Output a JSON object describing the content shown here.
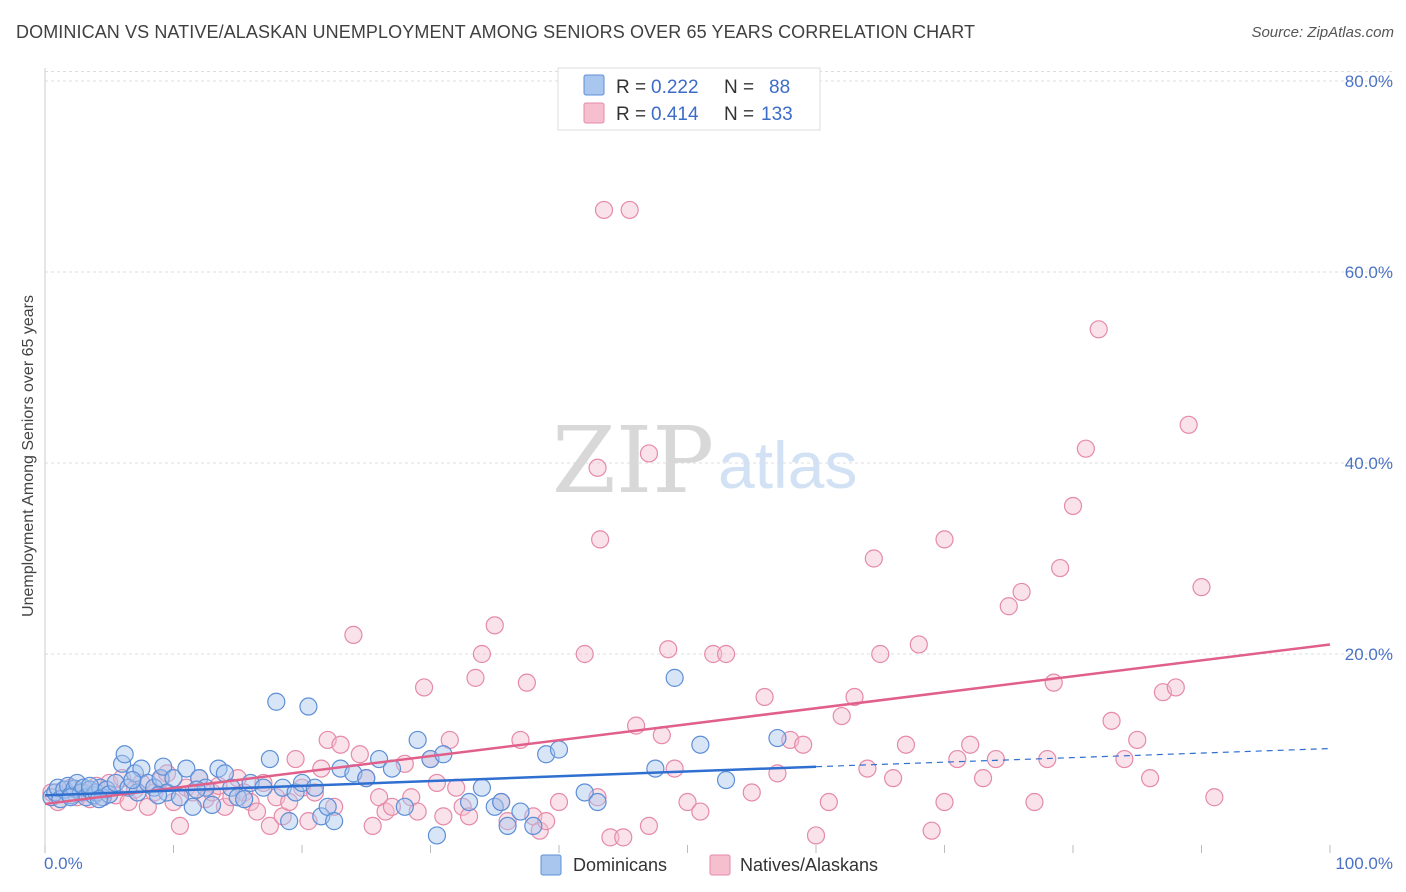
{
  "title": "DOMINICAN VS NATIVE/ALASKAN UNEMPLOYMENT AMONG SENIORS OVER 65 YEARS CORRELATION CHART",
  "source": "Source: ZipAtlas.com",
  "watermark": {
    "zip": "ZIP",
    "atlas": "atlas"
  },
  "colors": {
    "blue_fill": "#a9c6ee",
    "blue_stroke": "#5d8fd6",
    "blue_line": "#2f6fd0",
    "pink_fill": "#f5bfd0",
    "pink_stroke": "#e58aa8",
    "pink_line": "#e0608a",
    "grid": "#dddddd",
    "axis_label": "#4a72c4"
  },
  "stats": {
    "r_label": "R =",
    "n_label": "N =",
    "blue": {
      "r": "0.222",
      "n": "88"
    },
    "pink": {
      "r": "0.414",
      "n": "133"
    }
  },
  "chart_data": {
    "type": "scatter",
    "title": "DOMINICAN VS NATIVE/ALASKAN UNEMPLOYMENT AMONG SENIORS OVER 65 YEARS CORRELATION CHART",
    "xlabel": "",
    "ylabel": "Unemployment Among Seniors over 65 years",
    "xlim": [
      0,
      100
    ],
    "ylim": [
      0,
      85
    ],
    "x_tick_labels": [
      "0.0%",
      "100.0%"
    ],
    "y_ticks": [
      20,
      40,
      60,
      80
    ],
    "y_tick_labels": [
      "20.0%",
      "40.0%",
      "60.0%",
      "80.0%"
    ],
    "legend": [
      "Dominicans",
      "Natives/Alaskans"
    ],
    "series": [
      {
        "name": "Dominicans",
        "trend": {
          "x0": 0,
          "y0": 5.2,
          "x1": 60,
          "y1": 8.2,
          "dashed_to_x": 100,
          "dashed_to_y": 10.1
        },
        "points": [
          [
            0.5,
            5.0
          ],
          [
            0.8,
            5.5
          ],
          [
            1.0,
            6.0
          ],
          [
            1.2,
            4.8
          ],
          [
            1.5,
            5.8
          ],
          [
            1.8,
            6.2
          ],
          [
            2.0,
            5.2
          ],
          [
            2.3,
            5.9
          ],
          [
            2.5,
            6.5
          ],
          [
            2.8,
            5.5
          ],
          [
            3.0,
            6.0
          ],
          [
            3.2,
            5.0
          ],
          [
            3.5,
            5.8
          ],
          [
            3.8,
            5.2
          ],
          [
            4.0,
            5.5
          ],
          [
            4.3,
            6.0
          ],
          [
            4.5,
            5.0
          ],
          [
            4.8,
            5.8
          ],
          [
            5.0,
            5.3
          ],
          [
            5.5,
            6.5
          ],
          [
            6.0,
            8.5
          ],
          [
            6.2,
            9.5
          ],
          [
            6.5,
            6.0
          ],
          [
            7.0,
            7.5
          ],
          [
            7.2,
            5.5
          ],
          [
            7.5,
            8.0
          ],
          [
            8.0,
            6.5
          ],
          [
            8.5,
            6.0
          ],
          [
            9.0,
            7.0
          ],
          [
            9.2,
            8.2
          ],
          [
            9.5,
            5.5
          ],
          [
            10.0,
            7.0
          ],
          [
            10.5,
            5.0
          ],
          [
            11.0,
            8.0
          ],
          [
            11.5,
            4.0
          ],
          [
            12.0,
            7.0
          ],
          [
            12.5,
            6.0
          ],
          [
            13.0,
            4.2
          ],
          [
            13.5,
            8.0
          ],
          [
            14.0,
            7.5
          ],
          [
            14.5,
            6.0
          ],
          [
            15.0,
            5.0
          ],
          [
            15.5,
            4.8
          ],
          [
            16.0,
            6.5
          ],
          [
            17.0,
            6.0
          ],
          [
            17.5,
            9.0
          ],
          [
            18.0,
            15.0
          ],
          [
            18.5,
            6.0
          ],
          [
            19.0,
            2.5
          ],
          [
            19.5,
            5.5
          ],
          [
            20.0,
            6.5
          ],
          [
            20.5,
            14.5
          ],
          [
            21.0,
            6.0
          ],
          [
            21.5,
            3.0
          ],
          [
            22.0,
            4.0
          ],
          [
            22.5,
            2.5
          ],
          [
            23.0,
            8.0
          ],
          [
            24.0,
            7.5
          ],
          [
            25.0,
            7.0
          ],
          [
            26.0,
            9.0
          ],
          [
            27.0,
            8.0
          ],
          [
            28.0,
            4.0
          ],
          [
            29.0,
            11.0
          ],
          [
            30.0,
            9.0
          ],
          [
            30.5,
            1.0
          ],
          [
            31.0,
            9.5
          ],
          [
            33.0,
            4.5
          ],
          [
            34.0,
            6.0
          ],
          [
            35.0,
            4.0
          ],
          [
            35.5,
            4.5
          ],
          [
            36.0,
            2.0
          ],
          [
            37.0,
            3.5
          ],
          [
            38.0,
            2.0
          ],
          [
            39.0,
            9.5
          ],
          [
            40.0,
            10.0
          ],
          [
            42.0,
            5.5
          ],
          [
            43.0,
            4.5
          ],
          [
            47.5,
            8.0
          ],
          [
            49.0,
            17.5
          ],
          [
            51.0,
            10.5
          ],
          [
            53.0,
            6.8
          ],
          [
            57.0,
            11.2
          ],
          [
            2.0,
            5.0
          ],
          [
            3.5,
            6.2
          ],
          [
            4.2,
            4.8
          ],
          [
            6.8,
            6.8
          ],
          [
            8.8,
            5.2
          ],
          [
            11.8,
            5.8
          ]
        ]
      },
      {
        "name": "Natives/Alaskans",
        "trend": {
          "x0": 0,
          "y0": 4.3,
          "x1": 100,
          "y1": 21.0
        },
        "points": [
          [
            0.5,
            5.5
          ],
          [
            1.0,
            4.5
          ],
          [
            1.5,
            5.8
          ],
          [
            2.0,
            6.0
          ],
          [
            2.5,
            5.0
          ],
          [
            3.0,
            5.5
          ],
          [
            3.5,
            4.8
          ],
          [
            4.0,
            6.2
          ],
          [
            4.5,
            5.0
          ],
          [
            5.0,
            6.5
          ],
          [
            5.5,
            5.2
          ],
          [
            6.0,
            7.0
          ],
          [
            6.5,
            4.5
          ],
          [
            7.0,
            5.8
          ],
          [
            7.5,
            6.5
          ],
          [
            8.0,
            4.0
          ],
          [
            8.5,
            5.5
          ],
          [
            9.0,
            6.8
          ],
          [
            9.5,
            7.5
          ],
          [
            10.0,
            4.5
          ],
          [
            10.5,
            2.0
          ],
          [
            11.0,
            6.0
          ],
          [
            11.5,
            5.5
          ],
          [
            12.0,
            7.0
          ],
          [
            12.5,
            4.8
          ],
          [
            13.0,
            5.5
          ],
          [
            13.5,
            6.2
          ],
          [
            14.0,
            4.0
          ],
          [
            14.5,
            5.0
          ],
          [
            15.0,
            7.0
          ],
          [
            15.5,
            5.5
          ],
          [
            16.0,
            4.5
          ],
          [
            16.5,
            3.5
          ],
          [
            17.0,
            6.5
          ],
          [
            17.5,
            2.0
          ],
          [
            18.0,
            5.0
          ],
          [
            18.5,
            3.0
          ],
          [
            19.0,
            4.5
          ],
          [
            19.5,
            9.0
          ],
          [
            20.0,
            6.0
          ],
          [
            20.5,
            2.5
          ],
          [
            21.0,
            5.5
          ],
          [
            21.5,
            8.0
          ],
          [
            22.0,
            11.0
          ],
          [
            22.5,
            4.0
          ],
          [
            23.0,
            10.5
          ],
          [
            24.0,
            22.0
          ],
          [
            24.5,
            9.5
          ],
          [
            25.0,
            7.0
          ],
          [
            25.5,
            2.0
          ],
          [
            26.0,
            5.0
          ],
          [
            26.5,
            3.5
          ],
          [
            27.0,
            4.0
          ],
          [
            28.0,
            8.5
          ],
          [
            28.5,
            5.0
          ],
          [
            29.0,
            3.5
          ],
          [
            29.5,
            16.5
          ],
          [
            30.0,
            9.0
          ],
          [
            30.5,
            6.5
          ],
          [
            31.0,
            3.0
          ],
          [
            31.5,
            11.0
          ],
          [
            32.0,
            6.0
          ],
          [
            32.5,
            4.0
          ],
          [
            33.0,
            3.0
          ],
          [
            33.5,
            17.5
          ],
          [
            34.0,
            20.0
          ],
          [
            35.0,
            23.0
          ],
          [
            35.5,
            4.5
          ],
          [
            36.0,
            2.5
          ],
          [
            37.0,
            11.0
          ],
          [
            37.5,
            17.0
          ],
          [
            38.0,
            3.0
          ],
          [
            38.5,
            1.5
          ],
          [
            39.0,
            2.5
          ],
          [
            40.0,
            4.5
          ],
          [
            42.0,
            20.0
          ],
          [
            43.0,
            5.0
          ],
          [
            44.0,
            0.8
          ],
          [
            45.0,
            0.8
          ],
          [
            46.0,
            12.5
          ],
          [
            47.0,
            2.0
          ],
          [
            48.0,
            11.5
          ],
          [
            48.5,
            20.5
          ],
          [
            49.0,
            8.0
          ],
          [
            50.0,
            4.5
          ],
          [
            51.0,
            3.5
          ],
          [
            52.0,
            20.0
          ],
          [
            53.0,
            20.0
          ],
          [
            55.0,
            5.5
          ],
          [
            56.0,
            15.5
          ],
          [
            57.0,
            7.5
          ],
          [
            58.0,
            11.0
          ],
          [
            59.0,
            10.5
          ],
          [
            60.0,
            1.0
          ],
          [
            61.0,
            4.5
          ],
          [
            62.0,
            13.5
          ],
          [
            63.0,
            15.5
          ],
          [
            64.0,
            8.0
          ],
          [
            65.0,
            20.0
          ],
          [
            66.0,
            7.0
          ],
          [
            67.0,
            10.5
          ],
          [
            68.0,
            21.0
          ],
          [
            69.0,
            1.5
          ],
          [
            70.0,
            4.5
          ],
          [
            71.0,
            9.0
          ],
          [
            72.0,
            10.5
          ],
          [
            73.0,
            7.0
          ],
          [
            74.0,
            9.0
          ],
          [
            75.0,
            25.0
          ],
          [
            76.0,
            26.5
          ],
          [
            77.0,
            4.5
          ],
          [
            78.0,
            9.0
          ],
          [
            78.5,
            17.0
          ],
          [
            79.0,
            29.0
          ],
          [
            80.0,
            35.5
          ],
          [
            81.0,
            41.5
          ],
          [
            82.0,
            54.0
          ],
          [
            83.0,
            13.0
          ],
          [
            84.0,
            9.0
          ],
          [
            85.0,
            11.0
          ],
          [
            86.0,
            7.0
          ],
          [
            87.0,
            16.0
          ],
          [
            88.0,
            16.5
          ],
          [
            89.0,
            44.0
          ],
          [
            90.0,
            27.0
          ],
          [
            91.0,
            5.0
          ],
          [
            47.0,
            41.0
          ],
          [
            43.5,
            66.5
          ],
          [
            45.5,
            66.5
          ],
          [
            43.0,
            39.5
          ],
          [
            43.2,
            32.0
          ],
          [
            70.0,
            32.0
          ],
          [
            64.5,
            30.0
          ]
        ]
      }
    ]
  }
}
